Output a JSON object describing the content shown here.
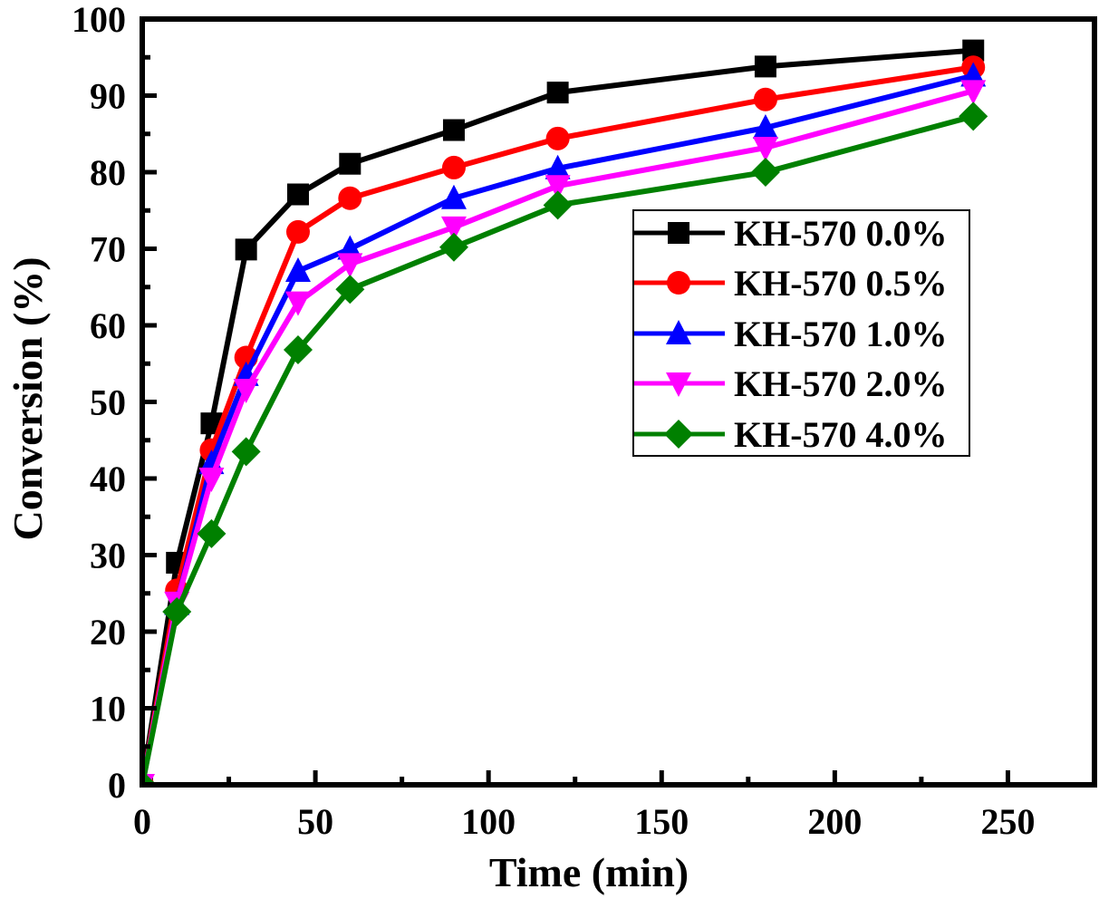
{
  "chart_data": {
    "type": "line",
    "title": "",
    "xlabel": "Time (min)",
    "ylabel": "Conversion (%)",
    "xlim": [
      0,
      275
    ],
    "ylim": [
      0,
      100
    ],
    "xticks": [
      0,
      50,
      100,
      150,
      200,
      250
    ],
    "xticks_minor": [
      25,
      75,
      125,
      175,
      225
    ],
    "yticks": [
      0,
      10,
      20,
      30,
      40,
      50,
      60,
      70,
      80,
      90,
      100
    ],
    "yticks_minor": [
      5,
      15,
      25,
      35,
      45,
      55,
      65,
      75,
      85,
      95
    ],
    "grid": false,
    "legend_position": "center-right",
    "x": [
      0,
      10,
      20,
      30,
      45,
      60,
      90,
      120,
      180,
      240
    ],
    "series": [
      {
        "name": "KH-570 0.0%",
        "color": "#000000",
        "marker": "square",
        "values": [
          0,
          29.0,
          47.2,
          69.9,
          77.1,
          81.1,
          85.5,
          90.4,
          93.8,
          95.9
        ]
      },
      {
        "name": "KH-570 0.5%",
        "color": "#ff0000",
        "marker": "circle",
        "values": [
          0,
          25.4,
          43.7,
          55.8,
          72.2,
          76.6,
          80.6,
          84.4,
          89.5,
          93.7
        ]
      },
      {
        "name": "KH-570 1.0%",
        "color": "#0000ff",
        "marker": "triangle-up",
        "values": [
          0,
          23.6,
          42.0,
          53.5,
          67.1,
          70.0,
          76.6,
          80.5,
          85.8,
          92.6
        ]
      },
      {
        "name": "KH-570 2.0%",
        "color": "#ff00ff",
        "marker": "triangle-down",
        "values": [
          0,
          23.8,
          40.0,
          51.6,
          63.0,
          68.0,
          72.8,
          78.2,
          83.2,
          90.6
        ]
      },
      {
        "name": "KH-570 4.0%",
        "color": "#008000",
        "marker": "diamond",
        "values": [
          0,
          22.6,
          32.8,
          43.5,
          56.8,
          64.7,
          70.2,
          75.7,
          80.0,
          87.3
        ]
      }
    ]
  }
}
